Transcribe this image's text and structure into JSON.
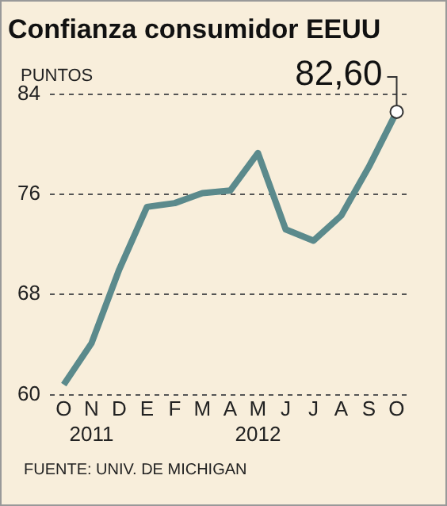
{
  "chart_data": {
    "type": "line",
    "title": "Confianza consumidor EEUU",
    "ylabel": "PUNTOS",
    "categories": [
      "O",
      "N\n2011",
      "D",
      "E",
      "F",
      "M",
      "A",
      "M\n2012",
      "J",
      "J",
      "A",
      "S",
      "O"
    ],
    "series": [
      {
        "color": "#5b8a8c",
        "values": [
          60.8,
          64.1,
          70.0,
          75.0,
          75.3,
          76.1,
          76.3,
          79.3,
          73.2,
          72.3,
          74.3,
          78.2,
          82.6
        ],
        "value_labels": [
          null,
          null,
          null,
          null,
          null,
          null,
          null,
          null,
          null,
          null,
          null,
          null,
          "82,60"
        ]
      }
    ],
    "ylim": [
      60,
      84
    ],
    "yticks": [
      60,
      68,
      76,
      84
    ],
    "grid": "y",
    "legend": false,
    "annotations": [
      "FUENTE: UNIV. DE MICHIGAN"
    ]
  }
}
